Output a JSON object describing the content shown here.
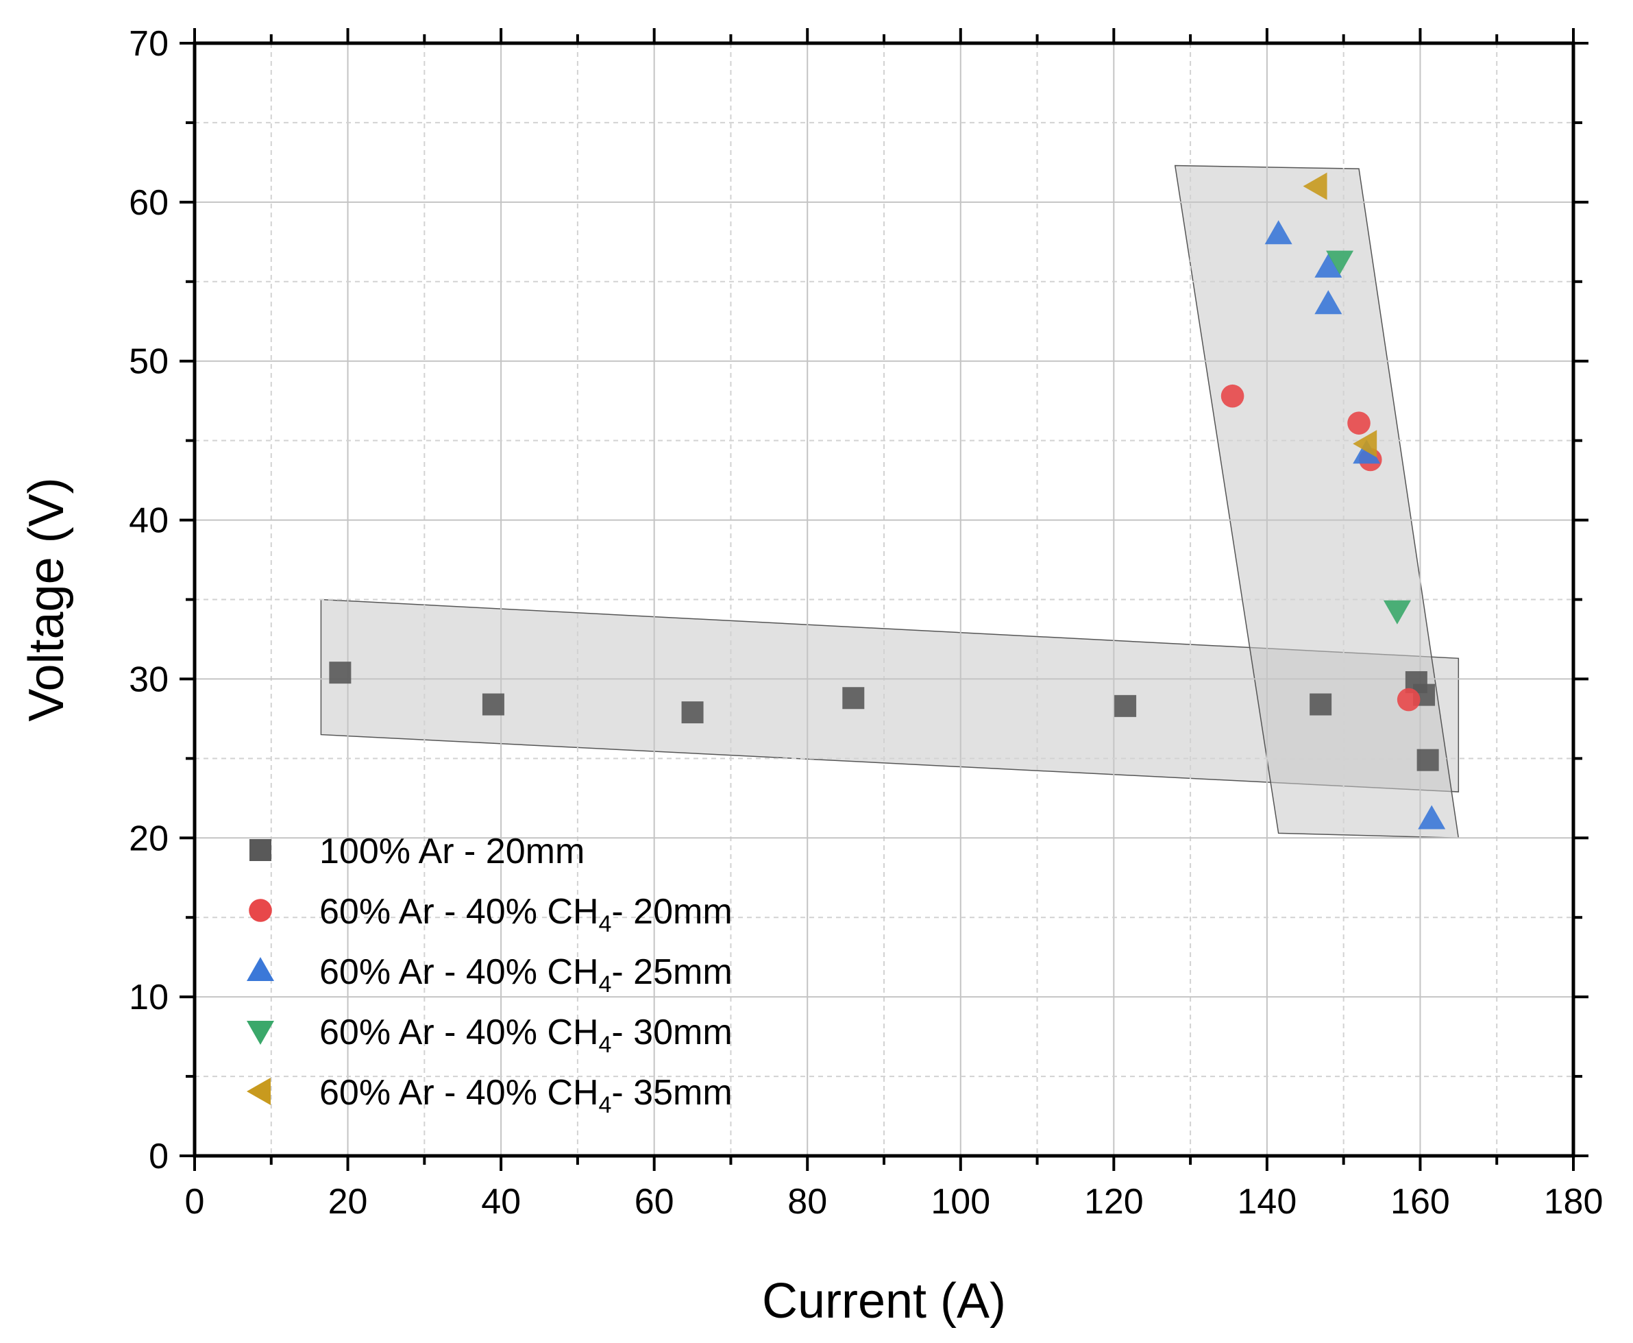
{
  "chart_data": {
    "type": "scatter",
    "xlabel": "Current (A)",
    "ylabel": "Voltage (V)",
    "xlim": [
      0,
      180
    ],
    "ylim": [
      0,
      70
    ],
    "x_ticks": [
      "0",
      "20",
      "40",
      "60",
      "80",
      "100",
      "120",
      "140",
      "160",
      "180"
    ],
    "y_ticks": [
      "0",
      "10",
      "20",
      "30",
      "40",
      "50",
      "60",
      "70"
    ],
    "grid": true,
    "legend_position": "bottom-left",
    "series": [
      {
        "name": "100% Ar - 20mm",
        "marker": "square",
        "color": "#595959",
        "points": [
          [
            19,
            30.4
          ],
          [
            39,
            28.4
          ],
          [
            65,
            27.9
          ],
          [
            86,
            28.8
          ],
          [
            121.5,
            28.3
          ],
          [
            147,
            28.4
          ],
          [
            159.5,
            29.8
          ],
          [
            160.5,
            29.0
          ],
          [
            161,
            24.9
          ]
        ]
      },
      {
        "name": "60% Ar - 40% CH4- 20mm",
        "label_main": "60% Ar - 40% CH",
        "label_sub": "4",
        "label_tail": "- 20mm",
        "marker": "circle",
        "color": "#e8484a",
        "points": [
          [
            135.5,
            47.8
          ],
          [
            152,
            46.1
          ],
          [
            153.5,
            43.8
          ],
          [
            158.5,
            28.7
          ]
        ]
      },
      {
        "name": "60% Ar - 40% CH4- 25mm",
        "label_main": "60% Ar - 40% CH",
        "label_sub": "4",
        "label_tail": "- 25mm",
        "marker": "triangle-up",
        "color": "#3b78d8",
        "points": [
          [
            141.5,
            58.0
          ],
          [
            148,
            55.9
          ],
          [
            148,
            53.6
          ],
          [
            153,
            44.2
          ],
          [
            161.5,
            21.2
          ]
        ]
      },
      {
        "name": "60% Ar - 40% CH4- 30mm",
        "label_main": "60% Ar - 40% CH",
        "label_sub": "4",
        "label_tail": "- 30mm",
        "marker": "triangle-down",
        "color": "#3aa86a",
        "points": [
          [
            149.5,
            56.3
          ],
          [
            157,
            34.3
          ]
        ]
      },
      {
        "name": "60% Ar - 40% CH4- 35mm",
        "label_main": "60% Ar - 40% CH",
        "label_sub": "4",
        "label_tail": "- 35mm",
        "marker": "triangle-left",
        "color": "#c89a1e",
        "points": [
          [
            146.5,
            61.0
          ],
          [
            153,
            44.8
          ]
        ]
      }
    ],
    "highlight_regions": [
      {
        "name": "low-current-band",
        "corners": [
          [
            16.5,
            35.0
          ],
          [
            165,
            31.3
          ],
          [
            165,
            22.9
          ],
          [
            16.5,
            26.5
          ]
        ]
      },
      {
        "name": "high-current-band",
        "corners": [
          [
            128,
            62.3
          ],
          [
            152,
            62.1
          ],
          [
            165,
            20.0
          ],
          [
            141.5,
            20.3
          ]
        ]
      }
    ]
  }
}
